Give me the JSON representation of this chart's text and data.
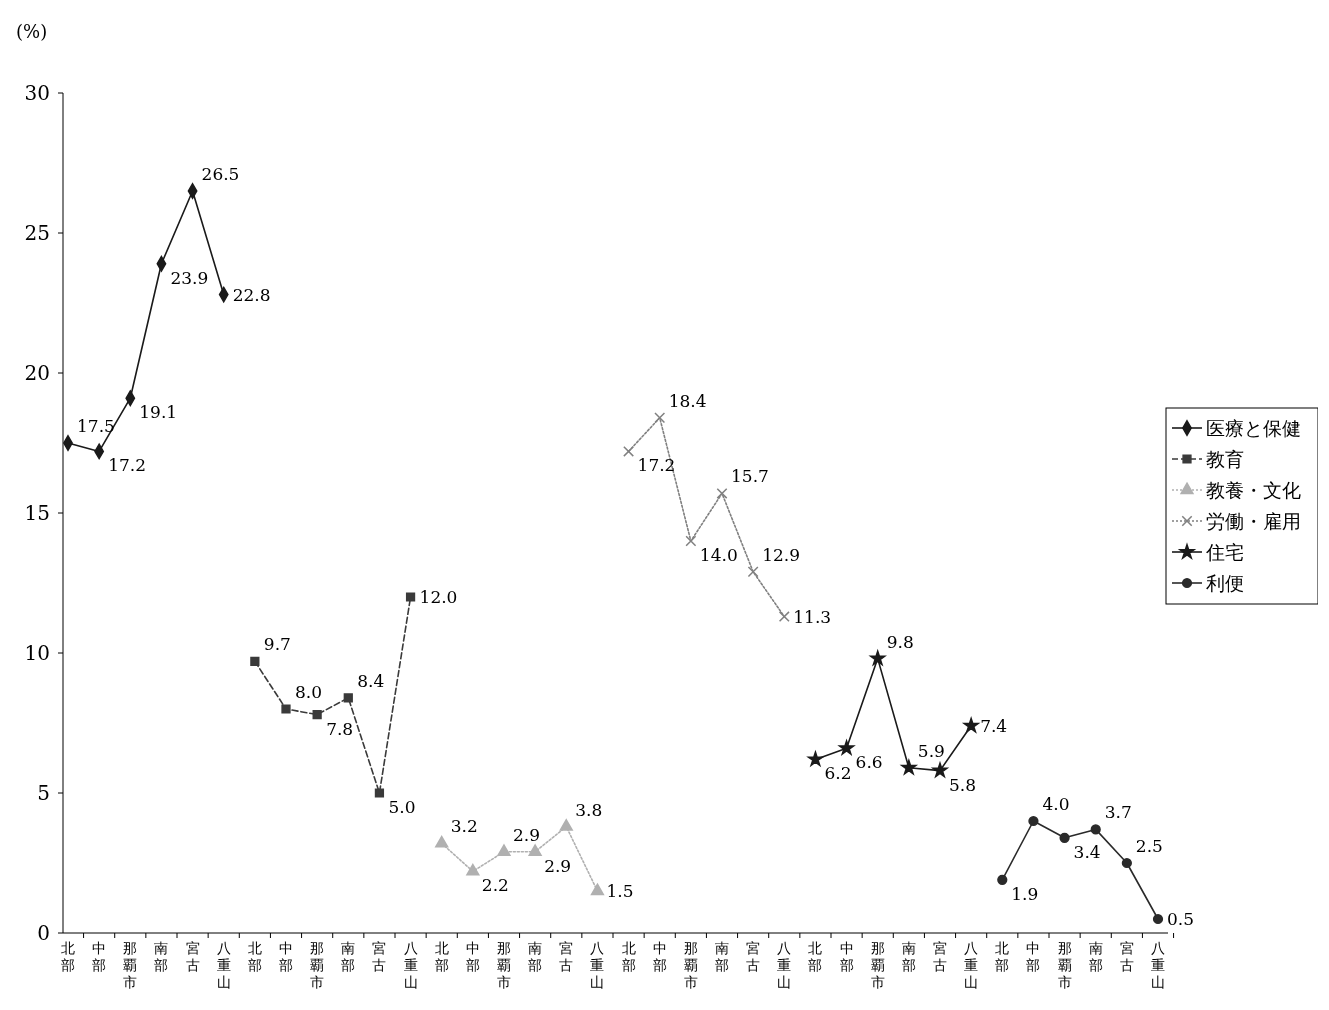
{
  "chart_data": {
    "type": "line",
    "ylabel": "(%)",
    "categories": [
      "北部",
      "中部",
      "那覇市",
      "南部",
      "宮古",
      "八重山",
      "北部",
      "中部",
      "那覇市",
      "南部",
      "宮古",
      "八重山",
      "北部",
      "中部",
      "那覇市",
      "南部",
      "宮古",
      "八重山",
      "北部",
      "中部",
      "那覇市",
      "南部",
      "宮古",
      "八重山",
      "北部",
      "中部",
      "那覇市",
      "南部",
      "宮古",
      "八重山",
      "北部",
      "中部",
      "那覇市",
      "南部",
      "宮古",
      "八重山"
    ],
    "series": [
      {
        "name": "医療と保健",
        "color": "#1a1a1a",
        "marker": "diamond",
        "line_style": "solid",
        "values": [
          17.5,
          17.2,
          19.1,
          23.9,
          26.5,
          22.8,
          null,
          null,
          null,
          null,
          null,
          null,
          null,
          null,
          null,
          null,
          null,
          null,
          null,
          null,
          null,
          null,
          null,
          null,
          null,
          null,
          null,
          null,
          null,
          null,
          null,
          null,
          null,
          null,
          null,
          null
        ],
        "value_labels": [
          "17.5",
          "17.2",
          "19.1",
          "23.9",
          "26.5",
          "22.8",
          null,
          null,
          null,
          null,
          null,
          null,
          null,
          null,
          null,
          null,
          null,
          null,
          null,
          null,
          null,
          null,
          null,
          null,
          null,
          null,
          null,
          null,
          null,
          null,
          null,
          null,
          null,
          null,
          null,
          null
        ]
      },
      {
        "name": "教育",
        "color": "#3a3a3a",
        "marker": "square",
        "line_style": "dashed",
        "values": [
          null,
          null,
          null,
          null,
          null,
          null,
          9.7,
          8.0,
          7.8,
          8.4,
          5.0,
          12.0,
          null,
          null,
          null,
          null,
          null,
          null,
          null,
          null,
          null,
          null,
          null,
          null,
          null,
          null,
          null,
          null,
          null,
          null,
          null,
          null,
          null,
          null,
          null,
          null
        ],
        "value_labels": [
          null,
          null,
          null,
          null,
          null,
          null,
          "9.7",
          "8.0",
          "7.8",
          "8.4",
          "5.0",
          "12.0",
          null,
          null,
          null,
          null,
          null,
          null,
          null,
          null,
          null,
          null,
          null,
          null,
          null,
          null,
          null,
          null,
          null,
          null,
          null,
          null,
          null,
          null,
          null,
          null
        ]
      },
      {
        "name": "教養・文化",
        "color": "#b0b0b0",
        "marker": "triangle",
        "line_style": "dotted",
        "values": [
          null,
          null,
          null,
          null,
          null,
          null,
          null,
          null,
          null,
          null,
          null,
          null,
          3.2,
          2.2,
          2.9,
          2.9,
          3.8,
          1.5,
          null,
          null,
          null,
          null,
          null,
          null,
          null,
          null,
          null,
          null,
          null,
          null,
          null,
          null,
          null,
          null,
          null,
          null
        ],
        "value_labels": [
          null,
          null,
          null,
          null,
          null,
          null,
          null,
          null,
          null,
          null,
          null,
          null,
          "3.2",
          "2.2",
          "2.9",
          "2.9",
          "3.8",
          "1.5",
          null,
          null,
          null,
          null,
          null,
          null,
          null,
          null,
          null,
          null,
          null,
          null,
          null,
          null,
          null,
          null,
          null,
          null
        ]
      },
      {
        "name": "労働・雇用",
        "color": "#808080",
        "marker": "cross",
        "line_style": "dotted",
        "values": [
          null,
          null,
          null,
          null,
          null,
          null,
          null,
          null,
          null,
          null,
          null,
          null,
          null,
          null,
          null,
          null,
          null,
          null,
          17.2,
          18.4,
          14.0,
          15.7,
          12.9,
          11.3,
          null,
          null,
          null,
          null,
          null,
          null,
          null,
          null,
          null,
          null,
          null,
          null
        ],
        "value_labels": [
          null,
          null,
          null,
          null,
          null,
          null,
          null,
          null,
          null,
          null,
          null,
          null,
          null,
          null,
          null,
          null,
          null,
          null,
          "17.2",
          "18.4",
          "14.0",
          "15.7",
          "12.9",
          "11.3",
          null,
          null,
          null,
          null,
          null,
          null,
          null,
          null,
          null,
          null,
          null,
          null
        ]
      },
      {
        "name": "住宅",
        "color": "#1a1a1a",
        "marker": "star",
        "line_style": "solid",
        "values": [
          null,
          null,
          null,
          null,
          null,
          null,
          null,
          null,
          null,
          null,
          null,
          null,
          null,
          null,
          null,
          null,
          null,
          null,
          null,
          null,
          null,
          null,
          null,
          null,
          6.2,
          6.6,
          9.8,
          5.9,
          5.8,
          7.4,
          null,
          null,
          null,
          null,
          null,
          null
        ],
        "value_labels": [
          null,
          null,
          null,
          null,
          null,
          null,
          null,
          null,
          null,
          null,
          null,
          null,
          null,
          null,
          null,
          null,
          null,
          null,
          null,
          null,
          null,
          null,
          null,
          null,
          "6.2",
          "6.6",
          "9.8",
          "5.9",
          "5.8",
          "7.4",
          null,
          null,
          null,
          null,
          null,
          null
        ]
      },
      {
        "name": "利便",
        "color": "#2a2a2a",
        "marker": "circle",
        "line_style": "solid",
        "values": [
          null,
          null,
          null,
          null,
          null,
          null,
          null,
          null,
          null,
          null,
          null,
          null,
          null,
          null,
          null,
          null,
          null,
          null,
          null,
          null,
          null,
          null,
          null,
          null,
          null,
          null,
          null,
          null,
          null,
          null,
          1.9,
          4.0,
          3.4,
          3.7,
          2.5,
          0.5
        ],
        "value_labels": [
          null,
          null,
          null,
          null,
          null,
          null,
          null,
          null,
          null,
          null,
          null,
          null,
          null,
          null,
          null,
          null,
          null,
          null,
          null,
          null,
          null,
          null,
          null,
          null,
          null,
          null,
          null,
          null,
          null,
          null,
          "1.9",
          "4.0",
          "3.4",
          "3.7",
          "2.5",
          "0.5"
        ]
      }
    ],
    "ylim": [
      0,
      30
    ],
    "yticks": [
      0,
      5,
      10,
      15,
      20,
      25,
      30
    ],
    "grid": false,
    "legend": "right"
  }
}
